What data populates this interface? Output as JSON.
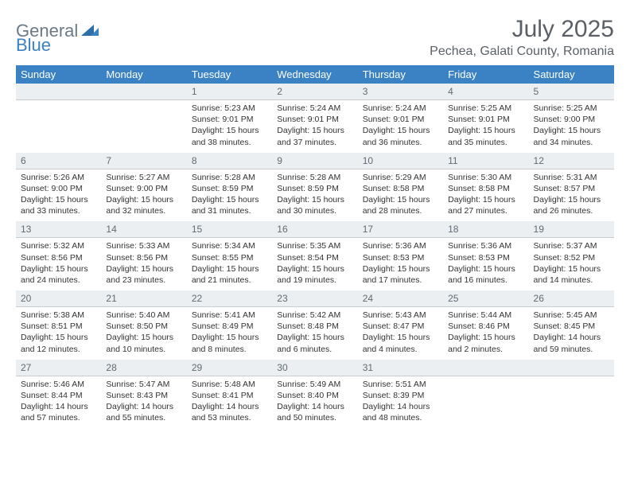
{
  "logo": {
    "general": "General",
    "blue": "Blue"
  },
  "title": "July 2025",
  "location": "Pechea, Galati County, Romania",
  "day_headers": [
    "Sunday",
    "Monday",
    "Tuesday",
    "Wednesday",
    "Thursday",
    "Friday",
    "Saturday"
  ],
  "colors": {
    "header_bg": "#3b82c4",
    "header_text": "#ffffff",
    "num_row_bg": "#eceff1",
    "num_text": "#5f6b74",
    "title_text": "#5a6066"
  },
  "weeks": [
    {
      "nums": [
        "",
        "",
        "1",
        "2",
        "3",
        "4",
        "5"
      ],
      "cells": [
        null,
        null,
        {
          "sunrise": "Sunrise: 5:23 AM",
          "sunset": "Sunset: 9:01 PM",
          "daylight1": "Daylight: 15 hours",
          "daylight2": "and 38 minutes."
        },
        {
          "sunrise": "Sunrise: 5:24 AM",
          "sunset": "Sunset: 9:01 PM",
          "daylight1": "Daylight: 15 hours",
          "daylight2": "and 37 minutes."
        },
        {
          "sunrise": "Sunrise: 5:24 AM",
          "sunset": "Sunset: 9:01 PM",
          "daylight1": "Daylight: 15 hours",
          "daylight2": "and 36 minutes."
        },
        {
          "sunrise": "Sunrise: 5:25 AM",
          "sunset": "Sunset: 9:01 PM",
          "daylight1": "Daylight: 15 hours",
          "daylight2": "and 35 minutes."
        },
        {
          "sunrise": "Sunrise: 5:25 AM",
          "sunset": "Sunset: 9:00 PM",
          "daylight1": "Daylight: 15 hours",
          "daylight2": "and 34 minutes."
        }
      ]
    },
    {
      "nums": [
        "6",
        "7",
        "8",
        "9",
        "10",
        "11",
        "12"
      ],
      "cells": [
        {
          "sunrise": "Sunrise: 5:26 AM",
          "sunset": "Sunset: 9:00 PM",
          "daylight1": "Daylight: 15 hours",
          "daylight2": "and 33 minutes."
        },
        {
          "sunrise": "Sunrise: 5:27 AM",
          "sunset": "Sunset: 9:00 PM",
          "daylight1": "Daylight: 15 hours",
          "daylight2": "and 32 minutes."
        },
        {
          "sunrise": "Sunrise: 5:28 AM",
          "sunset": "Sunset: 8:59 PM",
          "daylight1": "Daylight: 15 hours",
          "daylight2": "and 31 minutes."
        },
        {
          "sunrise": "Sunrise: 5:28 AM",
          "sunset": "Sunset: 8:59 PM",
          "daylight1": "Daylight: 15 hours",
          "daylight2": "and 30 minutes."
        },
        {
          "sunrise": "Sunrise: 5:29 AM",
          "sunset": "Sunset: 8:58 PM",
          "daylight1": "Daylight: 15 hours",
          "daylight2": "and 28 minutes."
        },
        {
          "sunrise": "Sunrise: 5:30 AM",
          "sunset": "Sunset: 8:58 PM",
          "daylight1": "Daylight: 15 hours",
          "daylight2": "and 27 minutes."
        },
        {
          "sunrise": "Sunrise: 5:31 AM",
          "sunset": "Sunset: 8:57 PM",
          "daylight1": "Daylight: 15 hours",
          "daylight2": "and 26 minutes."
        }
      ]
    },
    {
      "nums": [
        "13",
        "14",
        "15",
        "16",
        "17",
        "18",
        "19"
      ],
      "cells": [
        {
          "sunrise": "Sunrise: 5:32 AM",
          "sunset": "Sunset: 8:56 PM",
          "daylight1": "Daylight: 15 hours",
          "daylight2": "and 24 minutes."
        },
        {
          "sunrise": "Sunrise: 5:33 AM",
          "sunset": "Sunset: 8:56 PM",
          "daylight1": "Daylight: 15 hours",
          "daylight2": "and 23 minutes."
        },
        {
          "sunrise": "Sunrise: 5:34 AM",
          "sunset": "Sunset: 8:55 PM",
          "daylight1": "Daylight: 15 hours",
          "daylight2": "and 21 minutes."
        },
        {
          "sunrise": "Sunrise: 5:35 AM",
          "sunset": "Sunset: 8:54 PM",
          "daylight1": "Daylight: 15 hours",
          "daylight2": "and 19 minutes."
        },
        {
          "sunrise": "Sunrise: 5:36 AM",
          "sunset": "Sunset: 8:53 PM",
          "daylight1": "Daylight: 15 hours",
          "daylight2": "and 17 minutes."
        },
        {
          "sunrise": "Sunrise: 5:36 AM",
          "sunset": "Sunset: 8:53 PM",
          "daylight1": "Daylight: 15 hours",
          "daylight2": "and 16 minutes."
        },
        {
          "sunrise": "Sunrise: 5:37 AM",
          "sunset": "Sunset: 8:52 PM",
          "daylight1": "Daylight: 15 hours",
          "daylight2": "and 14 minutes."
        }
      ]
    },
    {
      "nums": [
        "20",
        "21",
        "22",
        "23",
        "24",
        "25",
        "26"
      ],
      "cells": [
        {
          "sunrise": "Sunrise: 5:38 AM",
          "sunset": "Sunset: 8:51 PM",
          "daylight1": "Daylight: 15 hours",
          "daylight2": "and 12 minutes."
        },
        {
          "sunrise": "Sunrise: 5:40 AM",
          "sunset": "Sunset: 8:50 PM",
          "daylight1": "Daylight: 15 hours",
          "daylight2": "and 10 minutes."
        },
        {
          "sunrise": "Sunrise: 5:41 AM",
          "sunset": "Sunset: 8:49 PM",
          "daylight1": "Daylight: 15 hours",
          "daylight2": "and 8 minutes."
        },
        {
          "sunrise": "Sunrise: 5:42 AM",
          "sunset": "Sunset: 8:48 PM",
          "daylight1": "Daylight: 15 hours",
          "daylight2": "and 6 minutes."
        },
        {
          "sunrise": "Sunrise: 5:43 AM",
          "sunset": "Sunset: 8:47 PM",
          "daylight1": "Daylight: 15 hours",
          "daylight2": "and 4 minutes."
        },
        {
          "sunrise": "Sunrise: 5:44 AM",
          "sunset": "Sunset: 8:46 PM",
          "daylight1": "Daylight: 15 hours",
          "daylight2": "and 2 minutes."
        },
        {
          "sunrise": "Sunrise: 5:45 AM",
          "sunset": "Sunset: 8:45 PM",
          "daylight1": "Daylight: 14 hours",
          "daylight2": "and 59 minutes."
        }
      ]
    },
    {
      "nums": [
        "27",
        "28",
        "29",
        "30",
        "31",
        "",
        ""
      ],
      "cells": [
        {
          "sunrise": "Sunrise: 5:46 AM",
          "sunset": "Sunset: 8:44 PM",
          "daylight1": "Daylight: 14 hours",
          "daylight2": "and 57 minutes."
        },
        {
          "sunrise": "Sunrise: 5:47 AM",
          "sunset": "Sunset: 8:43 PM",
          "daylight1": "Daylight: 14 hours",
          "daylight2": "and 55 minutes."
        },
        {
          "sunrise": "Sunrise: 5:48 AM",
          "sunset": "Sunset: 8:41 PM",
          "daylight1": "Daylight: 14 hours",
          "daylight2": "and 53 minutes."
        },
        {
          "sunrise": "Sunrise: 5:49 AM",
          "sunset": "Sunset: 8:40 PM",
          "daylight1": "Daylight: 14 hours",
          "daylight2": "and 50 minutes."
        },
        {
          "sunrise": "Sunrise: 5:51 AM",
          "sunset": "Sunset: 8:39 PM",
          "daylight1": "Daylight: 14 hours",
          "daylight2": "and 48 minutes."
        },
        null,
        null
      ]
    }
  ]
}
